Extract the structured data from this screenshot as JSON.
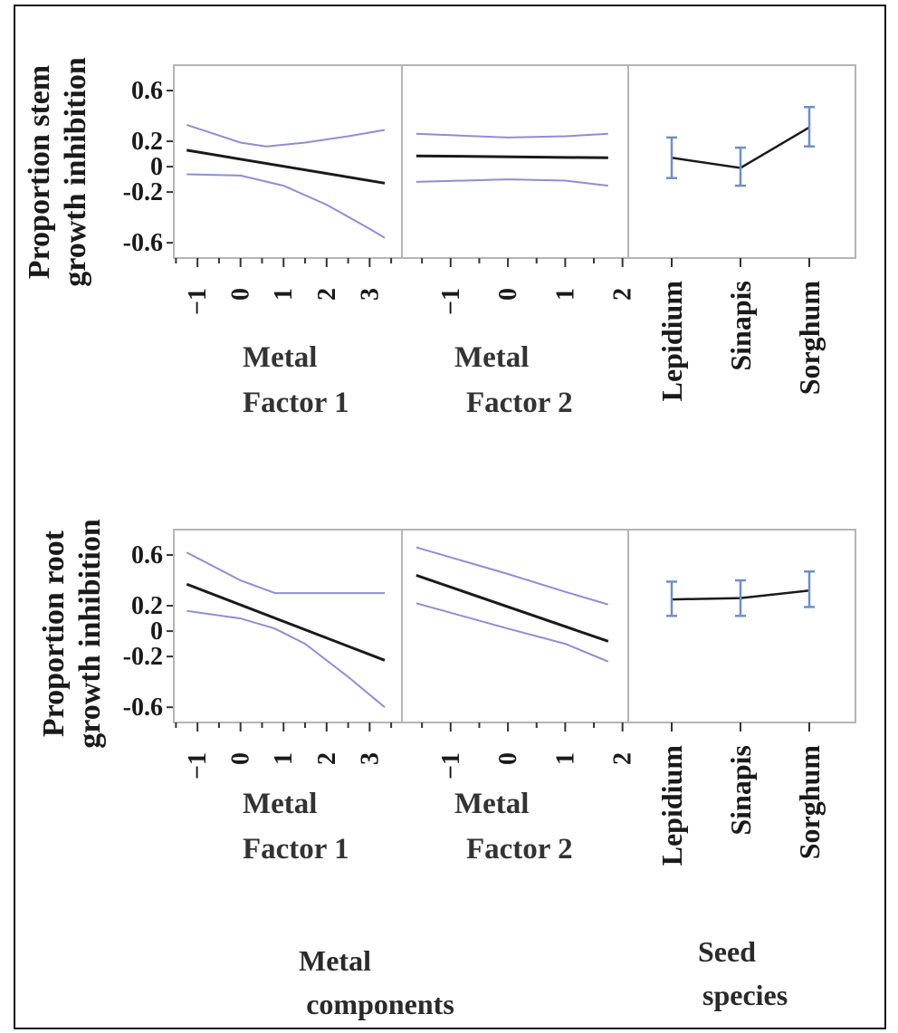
{
  "colors": {
    "line": "#1a1a1a",
    "band": "#8c8fd6",
    "errorbar": "#6f8fc4",
    "frame": "#b5b5b5",
    "border": "#111111"
  },
  "group_labels": {
    "metal": [
      "Metal",
      "components"
    ],
    "seed": [
      "Seed",
      "species"
    ]
  },
  "chart_data": [
    {
      "id": "stem",
      "type": "line",
      "ylabel_lines": [
        "Proportion stem",
        "growth inhibition"
      ],
      "yticks": [
        0.6,
        0.2,
        0,
        -0.2,
        -0.6
      ],
      "ytick_labels": [
        "0.6",
        "0.2",
        "0",
        "-0.2",
        "-0.6"
      ],
      "ylim": [
        -0.72,
        0.8
      ],
      "panels": [
        {
          "id": "mf1",
          "xlabel_lines": [
            "Metal",
            "Factor 1"
          ],
          "xlim": [
            -1.55,
            3.75
          ],
          "xticks": [
            -1,
            0,
            1,
            2,
            3
          ],
          "xtick_labels": [
            "−1",
            "0",
            "1",
            "2",
            "3"
          ],
          "x": [
            -1.25,
            3.35
          ],
          "fit": [
            0.13,
            -0.13
          ],
          "lower": [
            [
              -1.25,
              -0.06
            ],
            [
              0,
              -0.07
            ],
            [
              1,
              -0.15
            ],
            [
              2,
              -0.3
            ],
            [
              3,
              -0.49
            ],
            [
              3.35,
              -0.56
            ]
          ],
          "upper": [
            [
              -1.25,
              0.33
            ],
            [
              0,
              0.19
            ],
            [
              0.6,
              0.16
            ],
            [
              1.5,
              0.19
            ],
            [
              2.5,
              0.24
            ],
            [
              3.35,
              0.29
            ]
          ]
        },
        {
          "id": "mf2",
          "xlabel_lines": [
            "Metal",
            "Factor 2"
          ],
          "xlim": [
            -1.85,
            2.1
          ],
          "xticks": [
            -1,
            0,
            1,
            2
          ],
          "xtick_labels": [
            "−1",
            "0",
            "1",
            "2"
          ],
          "x": [
            -1.6,
            1.75
          ],
          "fit": [
            0.085,
            0.07
          ],
          "lower": [
            [
              -1.6,
              -0.12
            ],
            [
              0,
              -0.1
            ],
            [
              1,
              -0.11
            ],
            [
              1.75,
              -0.15
            ]
          ],
          "upper": [
            [
              -1.6,
              0.26
            ],
            [
              0,
              0.23
            ],
            [
              1,
              0.24
            ],
            [
              1.75,
              0.26
            ]
          ]
        },
        {
          "id": "seed",
          "type": "errorbar",
          "categories": [
            "Lepidium",
            "Sinapis",
            "Sorghum"
          ],
          "values": [
            0.07,
            -0.01,
            0.31
          ],
          "lower": [
            -0.09,
            -0.15,
            0.16
          ],
          "upper": [
            0.23,
            0.15,
            0.47
          ]
        }
      ]
    },
    {
      "id": "root",
      "type": "line",
      "ylabel_lines": [
        "Proportion root",
        "growth inhibition"
      ],
      "yticks": [
        0.6,
        0.2,
        0,
        -0.2,
        -0.6
      ],
      "ytick_labels": [
        "0.6",
        "0.2",
        "0",
        "-0.2",
        "-0.6"
      ],
      "ylim": [
        -0.72,
        0.8
      ],
      "panels": [
        {
          "id": "mf1",
          "xlabel_lines": [
            "Metal",
            "Factor 1"
          ],
          "xlim": [
            -1.55,
            3.75
          ],
          "xticks": [
            -1,
            0,
            1,
            2,
            3
          ],
          "xtick_labels": [
            "−1",
            "0",
            "1",
            "2",
            "3"
          ],
          "x": [
            -1.25,
            3.35
          ],
          "fit": [
            0.37,
            -0.23
          ],
          "lower": [
            [
              -1.25,
              0.16
            ],
            [
              0,
              0.1
            ],
            [
              0.8,
              0.02
            ],
            [
              1.5,
              -0.1
            ],
            [
              2.5,
              -0.36
            ],
            [
              3.35,
              -0.6
            ]
          ],
          "upper": [
            [
              -1.25,
              0.62
            ],
            [
              0,
              0.4
            ],
            [
              0.8,
              0.3
            ],
            [
              2,
              0.3
            ],
            [
              3.35,
              0.3
            ]
          ]
        },
        {
          "id": "mf2",
          "xlabel_lines": [
            "Metal",
            "Factor 2"
          ],
          "xlim": [
            -1.85,
            2.1
          ],
          "xticks": [
            -1,
            0,
            1,
            2
          ],
          "xtick_labels": [
            "−1",
            "0",
            "1",
            "2"
          ],
          "x": [
            -1.6,
            1.75
          ],
          "fit": [
            0.44,
            -0.08
          ],
          "lower": [
            [
              -1.6,
              0.22
            ],
            [
              0,
              0.02
            ],
            [
              1,
              -0.1
            ],
            [
              1.75,
              -0.24
            ]
          ],
          "upper": [
            [
              -1.6,
              0.66
            ],
            [
              0,
              0.45
            ],
            [
              1,
              0.31
            ],
            [
              1.75,
              0.21
            ]
          ]
        },
        {
          "id": "seed",
          "type": "errorbar",
          "categories": [
            "Lepidium",
            "Sinapis",
            "Sorghum"
          ],
          "values": [
            0.25,
            0.26,
            0.32
          ],
          "lower": [
            0.12,
            0.12,
            0.19
          ],
          "upper": [
            0.39,
            0.4,
            0.47
          ]
        }
      ]
    }
  ]
}
